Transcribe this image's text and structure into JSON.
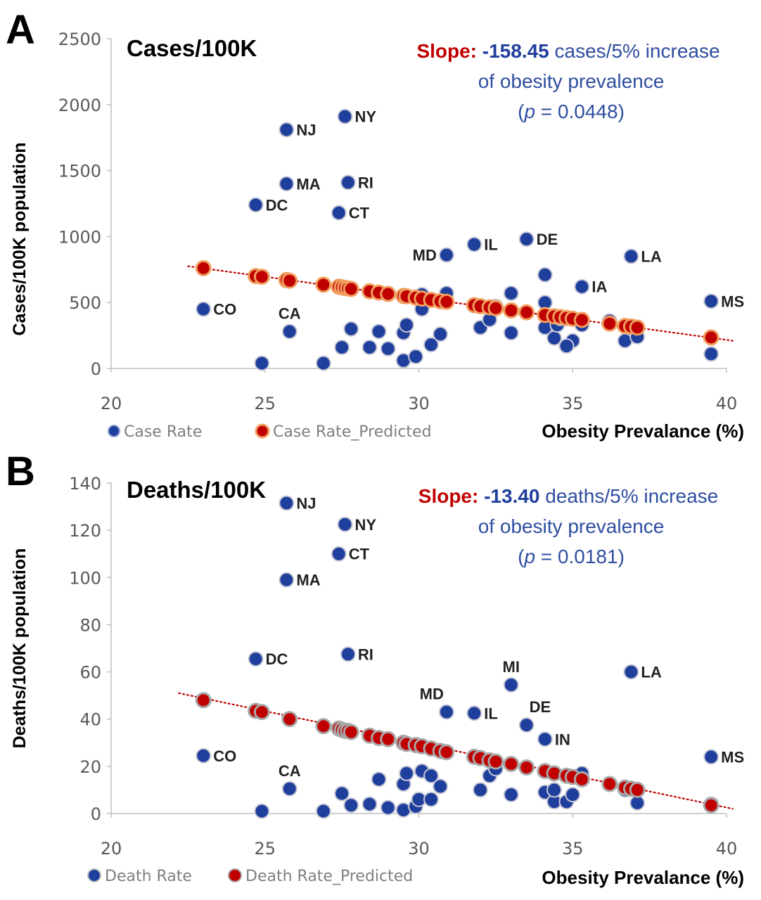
{
  "chart_data": [
    {
      "type": "scatter",
      "panel_letter": "A",
      "title": "Cases/100K",
      "xlabel": "Obesity Prevalance (%)",
      "ylabel": "Cases/100K population",
      "xlim": [
        20,
        40
      ],
      "ylim": [
        0,
        2500
      ],
      "xticks": [
        "20",
        "25",
        "30",
        "35",
        "40"
      ],
      "yticks": [
        "0",
        "500",
        "1000",
        "1500",
        "2000",
        "2500"
      ],
      "grid": false,
      "legend_position": "bottom-left",
      "annotation": {
        "slope_label": "Slope:",
        "slope_value": "-158.45",
        "line1_rest": " cases/5% increase",
        "line2": "of obesity prevalence",
        "line3_open": "(",
        "line3_p": "p",
        "line3_rest": " = 0.0448)"
      },
      "colors": {
        "actual": "#1f3f9c",
        "predicted": "#c00000",
        "predicted_edge": "#f0a060",
        "trend": "#c00000"
      },
      "trendline": [
        [
          22.5,
          775
        ],
        [
          40.2,
          210
        ]
      ],
      "series": [
        {
          "name": "Case Rate",
          "points": [
            [
              23.0,
              450
            ],
            [
              24.7,
              1240
            ],
            [
              24.9,
              40
            ],
            [
              25.7,
              1810
            ],
            [
              25.7,
              1400
            ],
            [
              25.8,
              280
            ],
            [
              26.9,
              40
            ],
            [
              27.4,
              1180
            ],
            [
              27.5,
              160
            ],
            [
              27.6,
              1910
            ],
            [
              27.7,
              1410
            ],
            [
              27.8,
              300
            ],
            [
              28.4,
              160
            ],
            [
              28.7,
              280
            ],
            [
              29.0,
              150
            ],
            [
              29.5,
              60
            ],
            [
              29.5,
              270
            ],
            [
              29.6,
              330
            ],
            [
              29.9,
              90
            ],
            [
              30.1,
              450
            ],
            [
              30.1,
              560
            ],
            [
              30.4,
              180
            ],
            [
              30.7,
              260
            ],
            [
              30.9,
              860
            ],
            [
              30.9,
              570
            ],
            [
              32.0,
              310
            ],
            [
              32.3,
              370
            ],
            [
              32.5,
              470
            ],
            [
              33.0,
              270
            ],
            [
              33.0,
              570
            ],
            [
              33.5,
              980
            ],
            [
              34.1,
              710
            ],
            [
              34.1,
              310
            ],
            [
              34.1,
              500
            ],
            [
              34.4,
              230
            ],
            [
              34.5,
              330
            ],
            [
              35.0,
              210
            ],
            [
              34.8,
              170
            ],
            [
              35.3,
              620
            ],
            [
              35.3,
              330
            ],
            [
              36.7,
              210
            ],
            [
              36.9,
              850
            ],
            [
              37.1,
              240
            ],
            [
              39.5,
              110
            ],
            [
              39.5,
              510
            ],
            [
              36.2,
              360
            ],
            [
              31.8,
              940
            ],
            [
              34.6,
              380
            ]
          ]
        },
        {
          "name": "Case Rate_Predicted",
          "points": [
            [
              23.0,
              760
            ],
            [
              24.7,
              700
            ],
            [
              24.9,
              695
            ],
            [
              25.7,
              670
            ],
            [
              25.8,
              665
            ],
            [
              26.9,
              635
            ],
            [
              27.4,
              620
            ],
            [
              27.5,
              615
            ],
            [
              27.6,
              610
            ],
            [
              27.7,
              607
            ],
            [
              27.8,
              603
            ],
            [
              28.4,
              585
            ],
            [
              28.7,
              575
            ],
            [
              29.0,
              565
            ],
            [
              29.5,
              550
            ],
            [
              29.6,
              547
            ],
            [
              29.9,
              537
            ],
            [
              30.1,
              530
            ],
            [
              30.4,
              520
            ],
            [
              30.7,
              510
            ],
            [
              30.9,
              505
            ],
            [
              31.8,
              480
            ],
            [
              32.0,
              472
            ],
            [
              32.3,
              463
            ],
            [
              32.5,
              457
            ],
            [
              33.0,
              440
            ],
            [
              33.5,
              425
            ],
            [
              34.1,
              405
            ],
            [
              34.4,
              395
            ],
            [
              34.6,
              390
            ],
            [
              34.8,
              383
            ],
            [
              35.0,
              377
            ],
            [
              35.3,
              368
            ],
            [
              36.2,
              340
            ],
            [
              36.7,
              322
            ],
            [
              36.9,
              318
            ],
            [
              37.1,
              310
            ],
            [
              39.5,
              235
            ]
          ]
        }
      ],
      "point_labels": [
        {
          "text": "NY",
          "x": 27.6,
          "y": 1910,
          "side": "right"
        },
        {
          "text": "NJ",
          "x": 25.7,
          "y": 1810,
          "side": "right"
        },
        {
          "text": "MA",
          "x": 25.7,
          "y": 1400,
          "side": "right"
        },
        {
          "text": "RI",
          "x": 27.7,
          "y": 1410,
          "side": "right"
        },
        {
          "text": "DC",
          "x": 24.7,
          "y": 1240,
          "side": "right"
        },
        {
          "text": "CT",
          "x": 27.4,
          "y": 1180,
          "side": "right"
        },
        {
          "text": "MD",
          "x": 30.9,
          "y": 860,
          "side": "left"
        },
        {
          "text": "IL",
          "x": 31.8,
          "y": 940,
          "side": "right"
        },
        {
          "text": "DE",
          "x": 33.5,
          "y": 980,
          "side": "right"
        },
        {
          "text": "LA",
          "x": 36.9,
          "y": 850,
          "side": "right"
        },
        {
          "text": "IA",
          "x": 35.3,
          "y": 620,
          "side": "right"
        },
        {
          "text": "MS",
          "x": 39.5,
          "y": 510,
          "side": "right"
        },
        {
          "text": "CO",
          "x": 23.0,
          "y": 450,
          "side": "right"
        },
        {
          "text": "CA",
          "x": 25.8,
          "y": 280,
          "side": "above"
        }
      ]
    },
    {
      "type": "scatter",
      "panel_letter": "B",
      "title": "Deaths/100K",
      "xlabel": "Obesity Prevalance (%)",
      "ylabel": "Deaths/100K population",
      "xlim": [
        20,
        40
      ],
      "ylim": [
        0,
        140
      ],
      "xticks": [
        "20",
        "25",
        "30",
        "35",
        "40"
      ],
      "yticks": [
        "0",
        "20",
        "40",
        "60",
        "80",
        "100",
        "120",
        "140"
      ],
      "grid": false,
      "legend_position": "bottom-left",
      "annotation": {
        "slope_label": "Slope:",
        "slope_value": "-13.40",
        "line1_rest": " deaths/5% increase",
        "line2": "of obesity prevalence",
        "line3_open": "(",
        "line3_p": "p",
        "line3_rest": " = 0.0181)"
      },
      "colors": {
        "actual": "#1f3f9c",
        "predicted": "#c00000",
        "predicted_edge": "#a8a8a8",
        "trend": "#c00000"
      },
      "trendline": [
        [
          22.2,
          51
        ],
        [
          40.2,
          2
        ]
      ],
      "series": [
        {
          "name": "Death Rate",
          "points": [
            [
              23.0,
              24.5
            ],
            [
              24.7,
              65.5
            ],
            [
              24.9,
              1.0
            ],
            [
              25.7,
              131.5
            ],
            [
              25.7,
              99.0
            ],
            [
              25.8,
              10.5
            ],
            [
              26.9,
              1.0
            ],
            [
              27.4,
              110.0
            ],
            [
              27.5,
              8.5
            ],
            [
              27.6,
              122.5
            ],
            [
              27.7,
              67.5
            ],
            [
              27.8,
              3.5
            ],
            [
              28.4,
              4.0
            ],
            [
              28.7,
              14.5
            ],
            [
              29.0,
              2.5
            ],
            [
              29.5,
              1.5
            ],
            [
              29.5,
              12.5
            ],
            [
              29.6,
              17.0
            ],
            [
              29.9,
              3.0
            ],
            [
              30.0,
              6.0
            ],
            [
              30.1,
              18.0
            ],
            [
              30.4,
              16.0
            ],
            [
              30.4,
              6.0
            ],
            [
              30.7,
              11.5
            ],
            [
              30.9,
              43.0
            ],
            [
              31.8,
              42.5
            ],
            [
              32.0,
              10.0
            ],
            [
              32.3,
              16.0
            ],
            [
              32.5,
              19.0
            ],
            [
              33.0,
              8.0
            ],
            [
              33.0,
              54.5
            ],
            [
              33.5,
              37.5
            ],
            [
              34.1,
              31.5
            ],
            [
              34.1,
              9.0
            ],
            [
              34.4,
              5.0
            ],
            [
              34.4,
              10.0
            ],
            [
              34.8,
              5.0
            ],
            [
              35.0,
              8.0
            ],
            [
              35.3,
              17.0
            ],
            [
              36.7,
              10.0
            ],
            [
              36.9,
              60.0
            ],
            [
              37.1,
              4.5
            ],
            [
              39.5,
              4.0
            ],
            [
              39.5,
              24.0
            ]
          ]
        },
        {
          "name": "Death Rate_Predicted",
          "points": [
            [
              23.0,
              48.0
            ],
            [
              24.7,
              43.5
            ],
            [
              24.9,
              43.0
            ],
            [
              25.8,
              40.0
            ],
            [
              26.9,
              37.0
            ],
            [
              27.4,
              36.0
            ],
            [
              27.5,
              35.5
            ],
            [
              27.6,
              35.0
            ],
            [
              27.7,
              35.0
            ],
            [
              27.8,
              34.5
            ],
            [
              28.4,
              33.0
            ],
            [
              28.7,
              32.0
            ],
            [
              29.0,
              31.5
            ],
            [
              29.5,
              30.0
            ],
            [
              29.6,
              29.5
            ],
            [
              29.9,
              29.0
            ],
            [
              30.1,
              28.5
            ],
            [
              30.4,
              27.5
            ],
            [
              30.7,
              26.5
            ],
            [
              30.9,
              26.0
            ],
            [
              31.8,
              24.0
            ],
            [
              32.0,
              23.5
            ],
            [
              32.3,
              22.5
            ],
            [
              32.5,
              22.0
            ],
            [
              33.0,
              21.0
            ],
            [
              33.5,
              19.5
            ],
            [
              34.1,
              18.0
            ],
            [
              34.4,
              17.0
            ],
            [
              34.8,
              16.0
            ],
            [
              35.0,
              15.5
            ],
            [
              35.3,
              14.5
            ],
            [
              36.2,
              12.5
            ],
            [
              36.7,
              11.0
            ],
            [
              36.9,
              10.5
            ],
            [
              37.1,
              10.0
            ],
            [
              39.5,
              3.5
            ]
          ]
        }
      ],
      "point_labels": [
        {
          "text": "NJ",
          "x": 25.7,
          "y": 131.5,
          "side": "right"
        },
        {
          "text": "NY",
          "x": 27.6,
          "y": 122.5,
          "side": "right"
        },
        {
          "text": "CT",
          "x": 27.4,
          "y": 110.0,
          "side": "right"
        },
        {
          "text": "MA",
          "x": 25.7,
          "y": 99.0,
          "side": "right"
        },
        {
          "text": "DC",
          "x": 24.7,
          "y": 65.5,
          "side": "right"
        },
        {
          "text": "RI",
          "x": 27.7,
          "y": 67.5,
          "side": "right"
        },
        {
          "text": "MI",
          "x": 33.0,
          "y": 54.5,
          "side": "above"
        },
        {
          "text": "LA",
          "x": 36.9,
          "y": 60.0,
          "side": "right"
        },
        {
          "text": "MD",
          "x": 30.9,
          "y": 43.0,
          "side": "aboveleft"
        },
        {
          "text": "IL",
          "x": 31.8,
          "y": 42.5,
          "side": "right"
        },
        {
          "text": "DE",
          "x": 33.5,
          "y": 37.5,
          "side": "aboveright"
        },
        {
          "text": "IN",
          "x": 34.1,
          "y": 31.5,
          "side": "right"
        },
        {
          "text": "MS",
          "x": 39.5,
          "y": 24.0,
          "side": "right"
        },
        {
          "text": "CO",
          "x": 23.0,
          "y": 24.5,
          "side": "right"
        },
        {
          "text": "CA",
          "x": 25.8,
          "y": 10.5,
          "side": "above"
        }
      ]
    }
  ]
}
